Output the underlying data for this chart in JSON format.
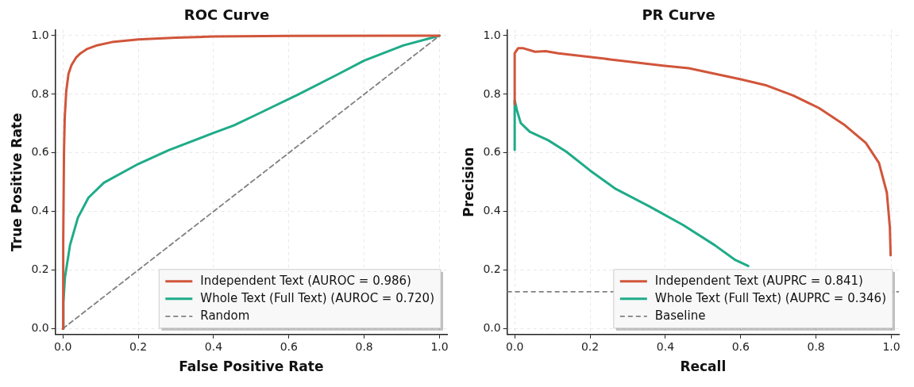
{
  "chart_data": [
    {
      "type": "line",
      "title": "ROC Curve",
      "xlabel": "False Positive Rate",
      "ylabel": "True Positive Rate",
      "xlim": [
        -0.02,
        1.02
      ],
      "ylim": [
        -0.02,
        1.02
      ],
      "xticks": [
        {
          "value": 0,
          "label": "0.0"
        },
        {
          "value": 0.2,
          "label": "0.2"
        },
        {
          "value": 0.4,
          "label": "0.4"
        },
        {
          "value": 0.6,
          "label": "0.6"
        },
        {
          "value": 0.8,
          "label": "0.8"
        },
        {
          "value": 1,
          "label": "1.0"
        }
      ],
      "yticks": [
        {
          "value": 0,
          "label": "0.0"
        },
        {
          "value": 0.2,
          "label": "0.2"
        },
        {
          "value": 0.4,
          "label": "0.4"
        },
        {
          "value": 0.6,
          "label": "0.6"
        },
        {
          "value": 0.8,
          "label": "0.8"
        },
        {
          "value": 1,
          "label": "1.0"
        }
      ],
      "grid": true,
      "legend": "bottom right",
      "series": [
        {
          "name": "Independent Text (AUROC = 0.986)",
          "color": "#d1553a",
          "x": [
            0,
            0.001,
            0.003,
            0.005,
            0.009,
            0.015,
            0.023,
            0.035,
            0.047,
            0.065,
            0.088,
            0.13,
            0.2,
            0.3,
            0.4,
            0.6,
            1
          ],
          "values": [
            0,
            0.3,
            0.6,
            0.72,
            0.81,
            0.87,
            0.9,
            0.925,
            0.94,
            0.955,
            0.966,
            0.978,
            0.987,
            0.993,
            0.997,
            0.999,
            1
          ]
        },
        {
          "name": "Whole Text (Full Text) (AUROC = 0.720)",
          "color": "#1fab89",
          "x": [
            0,
            0.0014,
            0.0055,
            0.019,
            0.04,
            0.068,
            0.109,
            0.2,
            0.281,
            0.4,
            0.454,
            0.523,
            0.626,
            0.73,
            0.8,
            0.902,
            1
          ],
          "values": [
            0,
            0.089,
            0.174,
            0.285,
            0.379,
            0.447,
            0.498,
            0.562,
            0.609,
            0.668,
            0.694,
            0.736,
            0.8,
            0.868,
            0.915,
            0.966,
            1
          ]
        },
        {
          "name": "Random",
          "color": "#808080",
          "line_style": "dashed",
          "x": [
            0,
            1
          ],
          "values": [
            0,
            1
          ]
        }
      ]
    },
    {
      "type": "line",
      "title": "PR Curve",
      "xlabel": "Recall",
      "ylabel": "Precision",
      "xlim": [
        -0.02,
        1.02
      ],
      "ylim": [
        -0.02,
        1.02
      ],
      "xticks": [
        {
          "value": 0,
          "label": "0.0"
        },
        {
          "value": 0.2,
          "label": "0.2"
        },
        {
          "value": 0.4,
          "label": "0.4"
        },
        {
          "value": 0.6,
          "label": "0.6"
        },
        {
          "value": 0.8,
          "label": "0.8"
        },
        {
          "value": 1,
          "label": "1.0"
        }
      ],
      "yticks": [
        {
          "value": 0,
          "label": "0.0"
        },
        {
          "value": 0.2,
          "label": "0.2"
        },
        {
          "value": 0.4,
          "label": "0.4"
        },
        {
          "value": 0.6,
          "label": "0.6"
        },
        {
          "value": 0.8,
          "label": "0.8"
        },
        {
          "value": 1,
          "label": "1.0"
        }
      ],
      "grid": true,
      "legend": "bottom right",
      "series": [
        {
          "name": "Independent Text (AUPRC = 0.841)",
          "color": "#d1553a",
          "x": [
            0,
            0,
            0.009,
            0.023,
            0.054,
            0.082,
            0.116,
            0.254,
            0.393,
            0.462,
            0.6,
            0.669,
            0.739,
            0.808,
            0.877,
            0.932,
            0.967,
            0.988,
            0.996,
            0.998
          ],
          "values": [
            0.766,
            0.94,
            0.957,
            0.957,
            0.945,
            0.947,
            0.94,
            0.919,
            0.898,
            0.889,
            0.851,
            0.83,
            0.796,
            0.753,
            0.694,
            0.634,
            0.566,
            0.464,
            0.345,
            0.25
          ]
        },
        {
          "name": "Whole Text (Full Text) (AUPRC = 0.346)",
          "color": "#1fab89",
          "x": [
            0,
            0,
            0.006,
            0.016,
            0.04,
            0.089,
            0.137,
            0.2,
            0.268,
            0.358,
            0.448,
            0.531,
            0.586,
            0.62
          ],
          "values": [
            0.61,
            0.779,
            0.745,
            0.702,
            0.672,
            0.643,
            0.604,
            0.54,
            0.477,
            0.417,
            0.353,
            0.285,
            0.234,
            0.214
          ]
        }
      ],
      "ref_lines": [
        {
          "axis": "y",
          "value": 0.126,
          "label": "Baseline",
          "color": "#808080",
          "line_style": "dashed"
        }
      ]
    }
  ]
}
